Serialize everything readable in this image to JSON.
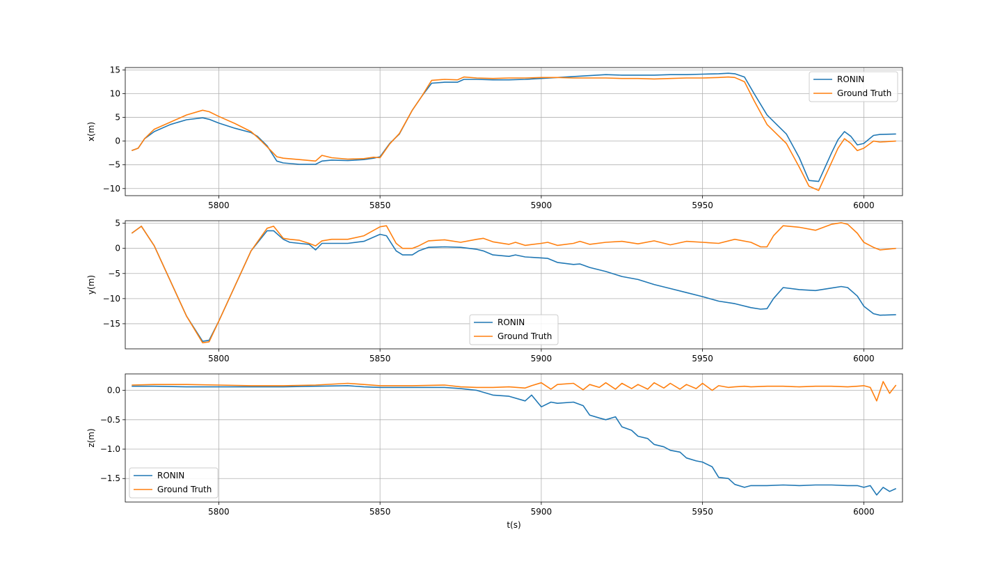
{
  "chart_data": [
    {
      "type": "line",
      "ylabel": "x(m)",
      "xlabel": "",
      "xlim": [
        5771,
        6012
      ],
      "ylim": [
        -11.5,
        15.5
      ],
      "xticks": [
        5800,
        5850,
        5900,
        5950,
        6000
      ],
      "yticks": [
        -10,
        -5,
        0,
        5,
        10,
        15
      ],
      "grid": true,
      "legend": "upper right",
      "series": [
        {
          "name": "RONIN",
          "color": "#1f77b4",
          "x": [
            5773,
            5775,
            5777,
            5780,
            5785,
            5790,
            5795,
            5797,
            5800,
            5805,
            5810,
            5812,
            5815,
            5818,
            5820,
            5825,
            5830,
            5832,
            5835,
            5840,
            5845,
            5848,
            5850,
            5853,
            5856,
            5860,
            5863,
            5866,
            5870,
            5874,
            5876,
            5880,
            5885,
            5890,
            5895,
            5900,
            5905,
            5910,
            5915,
            5920,
            5925,
            5930,
            5935,
            5940,
            5945,
            5950,
            5955,
            5958,
            5960,
            5963,
            5966,
            5970,
            5973,
            5976,
            5980,
            5983,
            5986,
            5990,
            5992,
            5994,
            5996,
            5998,
            6000,
            6003,
            6005,
            6010
          ],
          "y": [
            -2.0,
            -1.5,
            0.5,
            2.0,
            3.5,
            4.5,
            4.9,
            4.6,
            3.8,
            2.7,
            1.8,
            1.0,
            -1.0,
            -4.2,
            -4.6,
            -4.9,
            -4.9,
            -4.2,
            -4.0,
            -4.1,
            -3.9,
            -3.6,
            -3.3,
            -0.5,
            1.5,
            6.5,
            9.5,
            12.2,
            12.4,
            12.4,
            13.0,
            13.0,
            12.9,
            12.9,
            13.0,
            13.2,
            13.4,
            13.6,
            13.8,
            14.0,
            13.9,
            13.9,
            13.9,
            14.0,
            14.0,
            14.1,
            14.2,
            14.3,
            14.2,
            13.5,
            10.0,
            5.5,
            3.5,
            1.5,
            -3.5,
            -8.3,
            -8.5,
            -2.5,
            0.3,
            2.0,
            1.0,
            -0.8,
            -0.5,
            1.2,
            1.4,
            1.5
          ]
        },
        {
          "name": "Ground Truth",
          "color": "#ff7f0e",
          "x": [
            5773,
            5775,
            5777,
            5780,
            5785,
            5790,
            5795,
            5797,
            5800,
            5805,
            5810,
            5812,
            5815,
            5818,
            5820,
            5825,
            5830,
            5832,
            5835,
            5840,
            5845,
            5848,
            5850,
            5853,
            5856,
            5860,
            5863,
            5866,
            5870,
            5874,
            5876,
            5880,
            5885,
            5890,
            5895,
            5900,
            5905,
            5910,
            5915,
            5920,
            5925,
            5930,
            5935,
            5940,
            5945,
            5950,
            5955,
            5958,
            5960,
            5963,
            5966,
            5970,
            5973,
            5976,
            5980,
            5983,
            5986,
            5990,
            5992,
            5994,
            5996,
            5998,
            6000,
            6003,
            6005,
            6010
          ],
          "y": [
            -2.0,
            -1.5,
            0.5,
            2.5,
            4.0,
            5.5,
            6.5,
            6.2,
            5.2,
            3.7,
            2.0,
            0.8,
            -1.2,
            -3.3,
            -3.6,
            -3.9,
            -4.2,
            -3.0,
            -3.5,
            -3.8,
            -3.7,
            -3.4,
            -3.5,
            -0.6,
            1.6,
            6.5,
            9.5,
            12.8,
            13.0,
            12.9,
            13.5,
            13.3,
            13.2,
            13.3,
            13.3,
            13.4,
            13.4,
            13.3,
            13.3,
            13.3,
            13.2,
            13.2,
            13.1,
            13.2,
            13.3,
            13.3,
            13.4,
            13.5,
            13.4,
            12.5,
            8.5,
            3.5,
            1.5,
            -0.5,
            -5.5,
            -9.5,
            -10.4,
            -4.5,
            -1.5,
            0.5,
            -0.5,
            -2.0,
            -1.5,
            0,
            -0.2,
            0
          ]
        }
      ]
    },
    {
      "type": "line",
      "ylabel": "y(m)",
      "xlabel": "",
      "xlim": [
        5771,
        6012
      ],
      "ylim": [
        -20,
        5.5
      ],
      "xticks": [
        5800,
        5850,
        5900,
        5950,
        6000
      ],
      "yticks": [
        -15,
        -10,
        -5,
        0,
        5
      ],
      "grid": true,
      "legend": "lower center",
      "series": [
        {
          "name": "RONIN",
          "color": "#1f77b4",
          "x": [
            5773,
            5776,
            5780,
            5785,
            5790,
            5795,
            5797,
            5800,
            5805,
            5810,
            5815,
            5817,
            5820,
            5822,
            5825,
            5828,
            5830,
            5832,
            5835,
            5840,
            5845,
            5850,
            5852,
            5855,
            5857,
            5860,
            5862,
            5865,
            5870,
            5875,
            5880,
            5882,
            5885,
            5890,
            5892,
            5895,
            5900,
            5902,
            5905,
            5910,
            5912,
            5915,
            5920,
            5925,
            5930,
            5935,
            5940,
            5945,
            5950,
            5955,
            5960,
            5965,
            5968,
            5970,
            5972,
            5975,
            5980,
            5985,
            5990,
            5993,
            5995,
            5998,
            6000,
            6003,
            6005,
            6010
          ],
          "y": [
            3.0,
            4.4,
            0.5,
            -6.5,
            -13.5,
            -18.5,
            -18.3,
            -14.5,
            -7.5,
            -0.5,
            3.5,
            3.5,
            1.8,
            1.2,
            1.0,
            0.8,
            -0.3,
            1.0,
            1.0,
            1.0,
            1.4,
            2.8,
            2.5,
            -0.5,
            -1.3,
            -1.3,
            -0.5,
            0.2,
            0.3,
            0.2,
            -0.2,
            -0.5,
            -1.3,
            -1.6,
            -1.3,
            -1.7,
            -1.9,
            -2.0,
            -2.8,
            -3.2,
            -3.1,
            -3.8,
            -4.6,
            -5.6,
            -6.2,
            -7.2,
            -8.0,
            -8.8,
            -9.6,
            -10.5,
            -11.0,
            -11.8,
            -12.1,
            -12.0,
            -10.0,
            -7.8,
            -8.2,
            -8.4,
            -7.9,
            -7.6,
            -7.8,
            -9.5,
            -11.5,
            -13.0,
            -13.3,
            -13.2
          ]
        },
        {
          "name": "Ground Truth",
          "color": "#ff7f0e",
          "x": [
            5773,
            5776,
            5780,
            5785,
            5790,
            5795,
            5797,
            5800,
            5805,
            5810,
            5815,
            5817,
            5820,
            5822,
            5825,
            5828,
            5830,
            5832,
            5835,
            5840,
            5845,
            5850,
            5852,
            5855,
            5857,
            5860,
            5862,
            5865,
            5870,
            5875,
            5880,
            5882,
            5885,
            5890,
            5892,
            5895,
            5900,
            5902,
            5905,
            5910,
            5912,
            5915,
            5920,
            5925,
            5930,
            5935,
            5940,
            5945,
            5950,
            5955,
            5960,
            5965,
            5968,
            5970,
            5972,
            5975,
            5980,
            5985,
            5990,
            5993,
            5995,
            5998,
            6000,
            6003,
            6005,
            6010
          ],
          "y": [
            3.0,
            4.4,
            0.5,
            -6.5,
            -13.5,
            -18.8,
            -18.6,
            -14.5,
            -7.5,
            -0.5,
            4.0,
            4.4,
            2.0,
            1.8,
            1.6,
            1.0,
            0.5,
            1.5,
            1.8,
            1.8,
            2.5,
            4.3,
            4.5,
            1.0,
            0.0,
            0.0,
            0.5,
            1.5,
            1.7,
            1.2,
            1.8,
            2.0,
            1.3,
            0.8,
            1.2,
            0.6,
            1.0,
            1.2,
            0.6,
            1.0,
            1.4,
            0.8,
            1.2,
            1.4,
            0.9,
            1.5,
            0.7,
            1.4,
            1.2,
            1.0,
            1.8,
            1.2,
            0.3,
            0.3,
            2.5,
            4.5,
            4.2,
            3.6,
            4.8,
            5.1,
            4.8,
            3.0,
            1.2,
            0.2,
            -0.3,
            0
          ]
        }
      ]
    },
    {
      "type": "line",
      "ylabel": "z(m)",
      "xlabel": "t(s)",
      "xlim": [
        5771,
        6012
      ],
      "ylim": [
        -1.9,
        0.28
      ],
      "xticks": [
        5800,
        5850,
        5900,
        5950,
        6000
      ],
      "yticks": [
        -1.5,
        -1.0,
        -0.5,
        0.0
      ],
      "grid": true,
      "legend": "lower left",
      "series": [
        {
          "name": "RONIN",
          "color": "#1f77b4",
          "x": [
            5773,
            5780,
            5790,
            5800,
            5810,
            5820,
            5830,
            5840,
            5845,
            5850,
            5860,
            5870,
            5875,
            5880,
            5885,
            5890,
            5895,
            5897,
            5900,
            5903,
            5905,
            5910,
            5913,
            5915,
            5918,
            5920,
            5923,
            5925,
            5928,
            5930,
            5933,
            5935,
            5938,
            5940,
            5943,
            5945,
            5948,
            5950,
            5953,
            5955,
            5958,
            5960,
            5963,
            5965,
            5970,
            5975,
            5980,
            5985,
            5990,
            5995,
            5998,
            6000,
            6002,
            6004,
            6006,
            6008,
            6010
          ],
          "y": [
            0.07,
            0.07,
            0.06,
            0.06,
            0.06,
            0.06,
            0.07,
            0.08,
            0.06,
            0.05,
            0.05,
            0.05,
            0.03,
            0.0,
            -0.08,
            -0.1,
            -0.18,
            -0.08,
            -0.28,
            -0.2,
            -0.22,
            -0.2,
            -0.26,
            -0.42,
            -0.47,
            -0.5,
            -0.45,
            -0.62,
            -0.68,
            -0.78,
            -0.82,
            -0.92,
            -0.96,
            -1.02,
            -1.05,
            -1.15,
            -1.2,
            -1.22,
            -1.3,
            -1.48,
            -1.5,
            -1.6,
            -1.65,
            -1.62,
            -1.62,
            -1.61,
            -1.62,
            -1.61,
            -1.61,
            -1.62,
            -1.62,
            -1.65,
            -1.62,
            -1.78,
            -1.65,
            -1.72,
            -1.67
          ]
        },
        {
          "name": "Ground Truth",
          "color": "#ff7f0e",
          "x": [
            5773,
            5780,
            5790,
            5800,
            5810,
            5820,
            5830,
            5840,
            5845,
            5850,
            5860,
            5870,
            5875,
            5880,
            5885,
            5890,
            5895,
            5897,
            5900,
            5903,
            5905,
            5910,
            5913,
            5915,
            5918,
            5920,
            5923,
            5925,
            5928,
            5930,
            5933,
            5935,
            5938,
            5940,
            5943,
            5945,
            5948,
            5950,
            5953,
            5955,
            5958,
            5960,
            5963,
            5965,
            5970,
            5975,
            5980,
            5985,
            5990,
            5995,
            5998,
            6000,
            6002,
            6004,
            6006,
            6008,
            6010
          ],
          "y": [
            0.09,
            0.1,
            0.1,
            0.09,
            0.08,
            0.08,
            0.09,
            0.12,
            0.1,
            0.08,
            0.08,
            0.09,
            0.06,
            0.05,
            0.05,
            0.06,
            0.04,
            0.08,
            0.13,
            0.02,
            0.1,
            0.12,
            0.01,
            0.1,
            0.05,
            0.13,
            0.02,
            0.12,
            0.03,
            0.1,
            0.02,
            0.13,
            0.04,
            0.12,
            0.02,
            0.1,
            0.03,
            0.12,
            0.0,
            0.08,
            0.05,
            0.06,
            0.07,
            0.06,
            0.07,
            0.07,
            0.06,
            0.07,
            0.07,
            0.06,
            0.07,
            0.08,
            0.05,
            -0.18,
            0.15,
            -0.05,
            0.09
          ]
        }
      ]
    }
  ]
}
